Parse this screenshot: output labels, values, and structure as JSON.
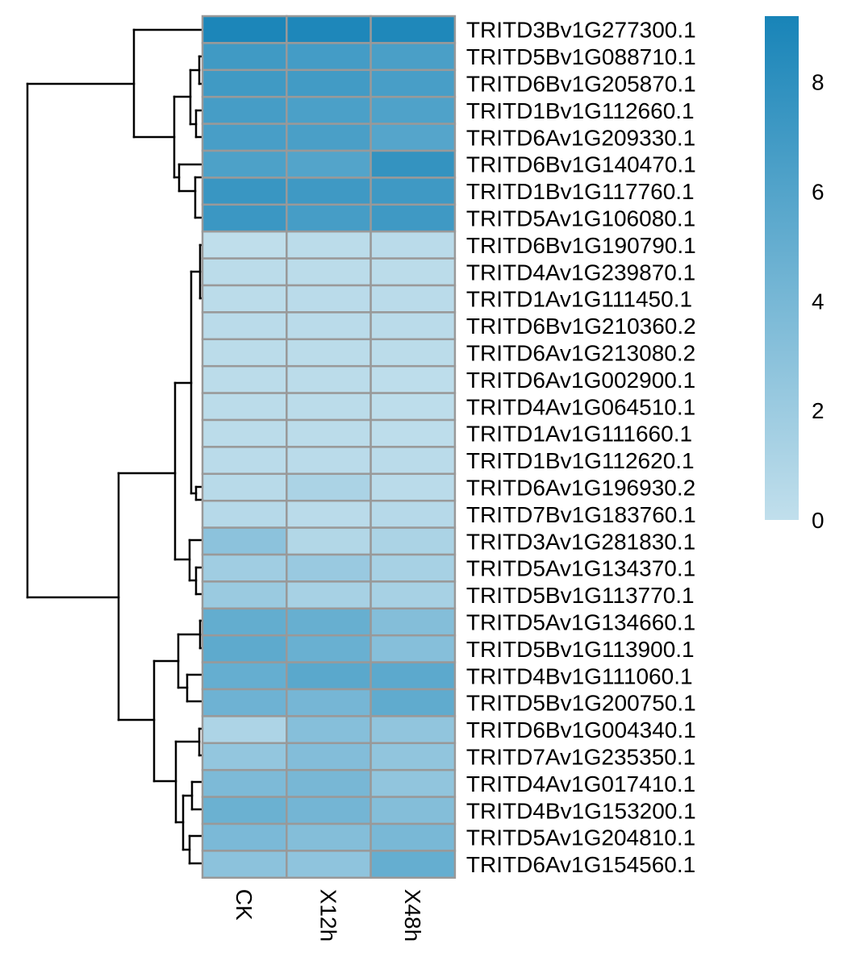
{
  "chart_data": {
    "type": "heatmap",
    "title": "",
    "columns": [
      "CK",
      "X12h",
      "X48h"
    ],
    "rows": [
      "TRITD3Bv1G277300.1",
      "TRITD5Bv1G088710.1",
      "TRITD6Bv1G205870.1",
      "TRITD1Bv1G112660.1",
      "TRITD6Av1G209330.1",
      "TRITD6Bv1G140470.1",
      "TRITD1Bv1G117760.1",
      "TRITD5Av1G106080.1",
      "TRITD6Bv1G190790.1",
      "TRITD4Av1G239870.1",
      "TRITD1Av1G111450.1",
      "TRITD6Bv1G210360.2",
      "TRITD6Av1G213080.2",
      "TRITD6Av1G002900.1",
      "TRITD4Av1G064510.1",
      "TRITD1Av1G111660.1",
      "TRITD1Bv1G112620.1",
      "TRITD6Av1G196930.2",
      "TRITD7Bv1G183760.1",
      "TRITD3Av1G281830.1",
      "TRITD5Av1G134370.1",
      "TRITD5Bv1G113770.1",
      "TRITD5Av1G134660.1",
      "TRITD5Bv1G113900.1",
      "TRITD4Bv1G111060.1",
      "TRITD5Bv1G200750.1",
      "TRITD6Bv1G004340.1",
      "TRITD7Av1G235350.1",
      "TRITD4Av1G017410.1",
      "TRITD4Bv1G153200.1",
      "TRITD5Av1G204810.1",
      "TRITD6Av1G154560.1"
    ],
    "values": [
      [
        9.0,
        8.9,
        8.8
      ],
      [
        7.0,
        6.8,
        6.5
      ],
      [
        7.0,
        6.9,
        6.6
      ],
      [
        6.7,
        6.4,
        6.2
      ],
      [
        6.6,
        6.5,
        5.9
      ],
      [
        6.3,
        6.0,
        7.7
      ],
      [
        7.4,
        7.1,
        7.1
      ],
      [
        7.3,
        6.7,
        7.1
      ],
      [
        0.1,
        0.3,
        0.4
      ],
      [
        0.3,
        0.3,
        0.3
      ],
      [
        0.3,
        0.4,
        0.4
      ],
      [
        0.4,
        0.4,
        0.4
      ],
      [
        0.3,
        0.3,
        0.3
      ],
      [
        0.3,
        0.3,
        0.2
      ],
      [
        0.3,
        0.3,
        0.2
      ],
      [
        0.3,
        0.3,
        0.2
      ],
      [
        0.4,
        0.4,
        0.4
      ],
      [
        0.5,
        1.2,
        0.4
      ],
      [
        0.6,
        0.4,
        0.6
      ],
      [
        2.9,
        0.8,
        1.2
      ],
      [
        1.8,
        2.2,
        1.4
      ],
      [
        2.1,
        1.4,
        1.4
      ],
      [
        5.1,
        4.9,
        3.3
      ],
      [
        5.4,
        4.8,
        3.2
      ],
      [
        5.0,
        5.6,
        5.5
      ],
      [
        4.5,
        4.1,
        5.3
      ],
      [
        1.1,
        3.2,
        2.6
      ],
      [
        2.5,
        3.4,
        2.6
      ],
      [
        3.7,
        4.0,
        2.6
      ],
      [
        4.7,
        4.2,
        3.3
      ],
      [
        3.8,
        3.3,
        3.9
      ],
      [
        2.9,
        2.7,
        5.0
      ]
    ],
    "color_scale": {
      "min": 0,
      "max": 9.2,
      "low_color": "#c1dfec",
      "high_color": "#1884b8",
      "ticks": [
        0,
        2,
        4,
        6,
        8
      ]
    },
    "cell_border_color": "#999999",
    "dendrogram": "rows",
    "legend_placement": "right"
  }
}
